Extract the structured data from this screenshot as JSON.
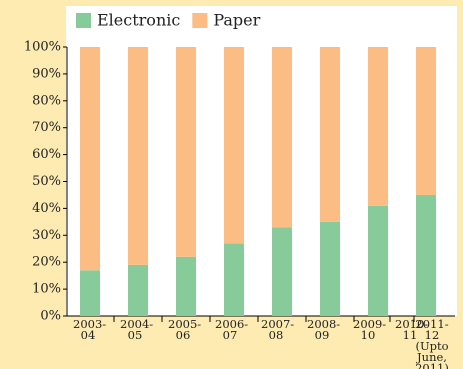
{
  "chart_data": {
    "type": "stacked-bar",
    "categories": [
      "2003-04",
      "2004-05",
      "2005-06",
      "2006-07",
      "2007-08",
      "2008-09",
      "2009-10",
      "2010-11",
      "2011-12 (Upto June, 2011)"
    ],
    "series": [
      {
        "name": "Electronic",
        "color": "#88cb9a",
        "values": [
          17,
          19,
          22,
          27,
          33,
          35,
          41,
          null,
          45
        ]
      },
      {
        "name": "Paper",
        "color": "#fbbd84",
        "values": [
          83,
          81,
          78,
          73,
          67,
          65,
          59,
          null,
          55
        ]
      }
    ],
    "ylim": [
      0,
      100
    ],
    "yticks": [
      {
        "value": 0,
        "label": "0%"
      },
      {
        "value": 10,
        "label": "10%"
      },
      {
        "value": 20,
        "label": "20%"
      },
      {
        "value": 30,
        "label": "30%"
      },
      {
        "value": 40,
        "label": "40%"
      },
      {
        "value": 50,
        "label": "50%"
      },
      {
        "value": 60,
        "label": "60%"
      },
      {
        "value": 70,
        "label": "70%"
      },
      {
        "value": 80,
        "label": "80%"
      },
      {
        "value": 90,
        "label": "90%"
      },
      {
        "value": 100,
        "label": "100%"
      }
    ],
    "legend": "top-left"
  }
}
